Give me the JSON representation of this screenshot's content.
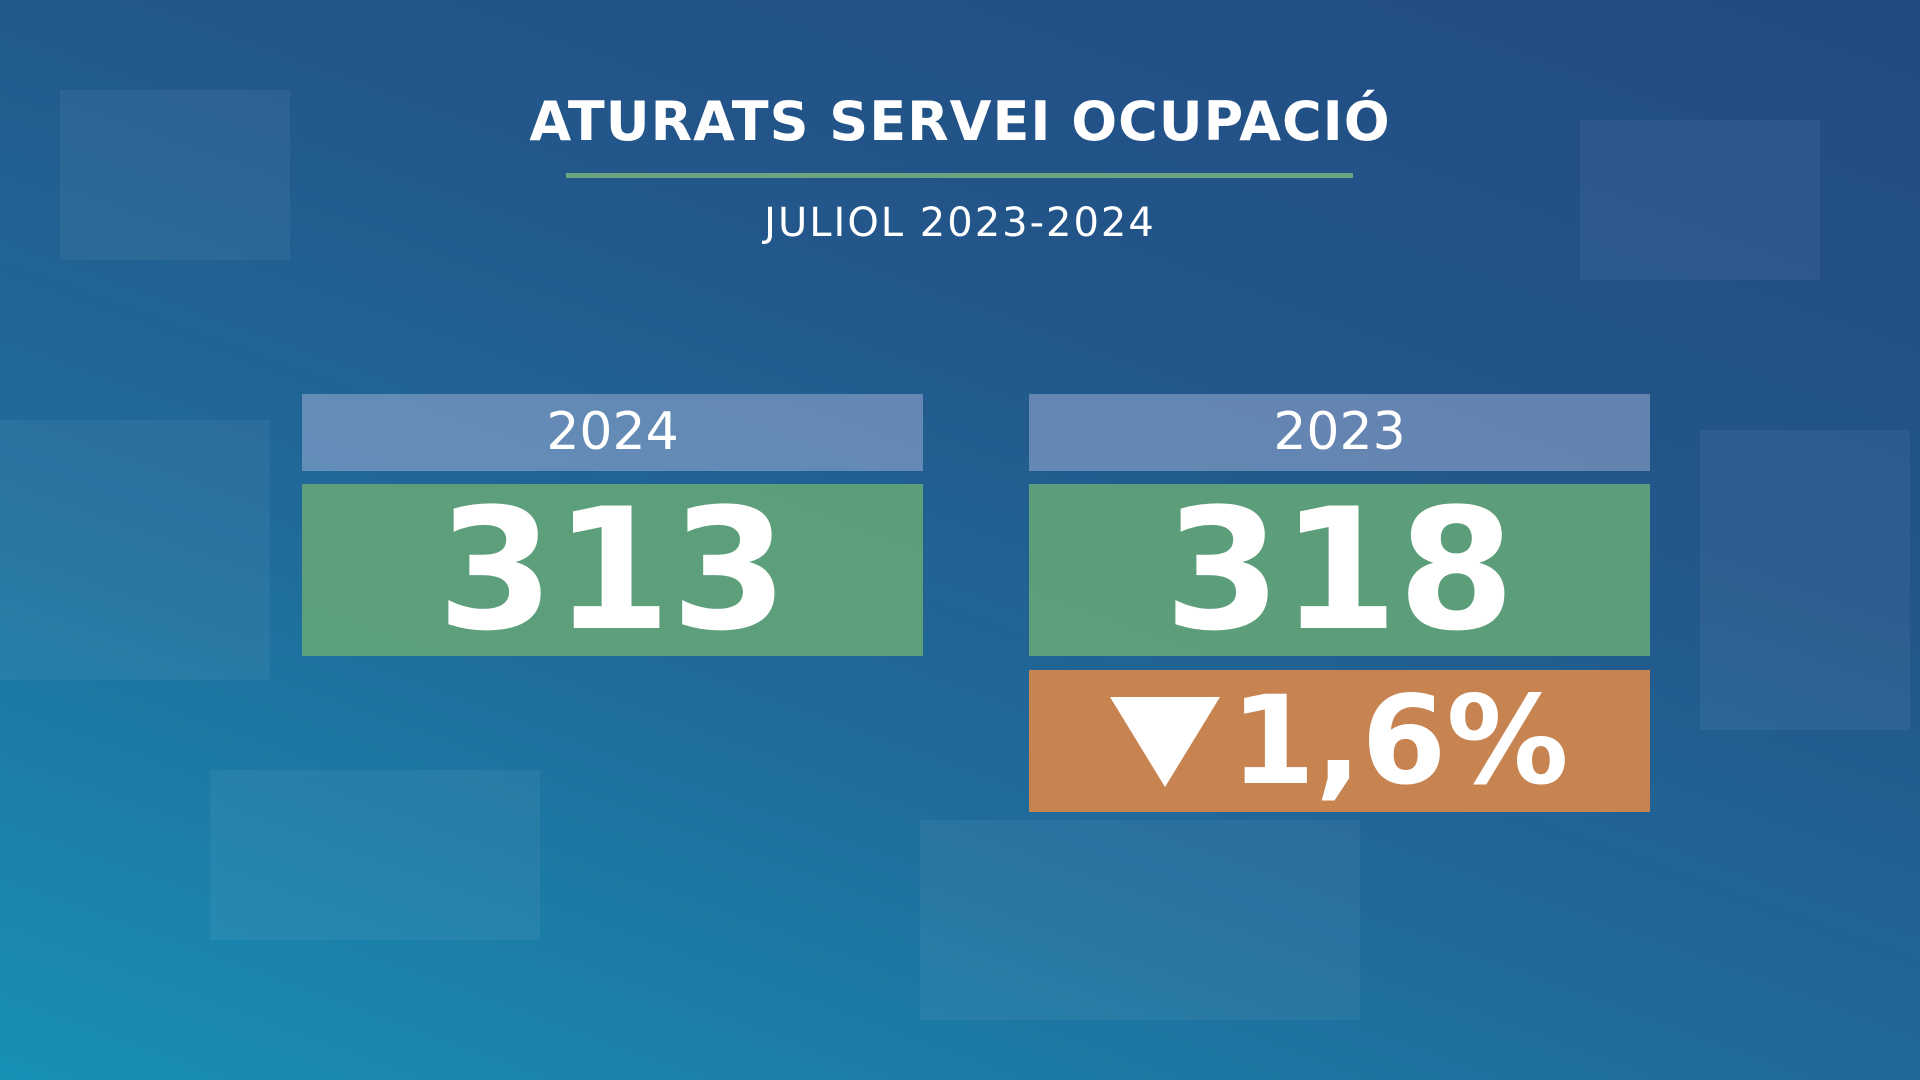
{
  "title": "ATURATS SERVEI OCUPACIÓ",
  "subtitle": "JULIOL 2023-2024",
  "cards": [
    {
      "year": "2024",
      "value": "313"
    },
    {
      "year": "2023",
      "value": "318"
    }
  ],
  "change": "1,6%"
}
